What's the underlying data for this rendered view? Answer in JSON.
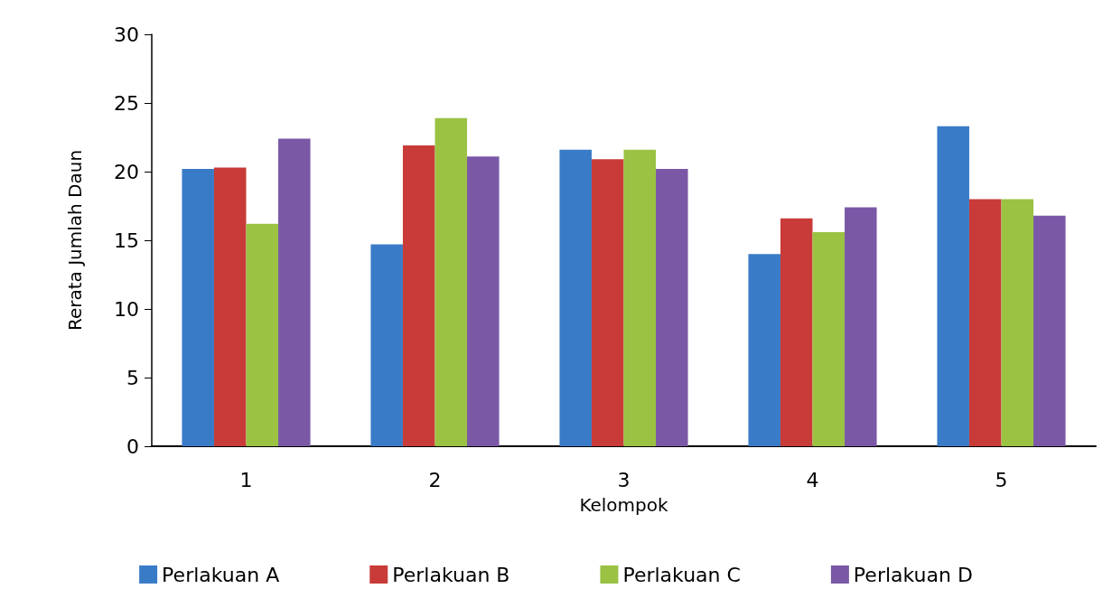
{
  "chart_data": {
    "type": "bar",
    "xlabel": "Kelompok",
    "ylabel": "Rerata Jumlah Daun",
    "categories": [
      "1",
      "2",
      "3",
      "4",
      "5"
    ],
    "series": [
      {
        "name": "Perlakuan A",
        "color": "#3a7bc8",
        "values": [
          20.2,
          14.7,
          21.6,
          14.0,
          23.3
        ]
      },
      {
        "name": "Perlakuan B",
        "color": "#c83b38",
        "values": [
          20.3,
          21.9,
          20.9,
          16.6,
          18.0
        ]
      },
      {
        "name": "Perlakuan C",
        "color": "#9bc243",
        "values": [
          16.2,
          23.9,
          21.6,
          15.6,
          18.0
        ]
      },
      {
        "name": "Perlakuan D",
        "color": "#7a58a6",
        "values": [
          22.4,
          21.1,
          20.2,
          17.4,
          16.8
        ]
      }
    ],
    "ylim": [
      0,
      30
    ],
    "yticks": [
      0,
      5,
      10,
      15,
      20,
      25,
      30
    ],
    "grid": false,
    "legend": "bottom"
  }
}
